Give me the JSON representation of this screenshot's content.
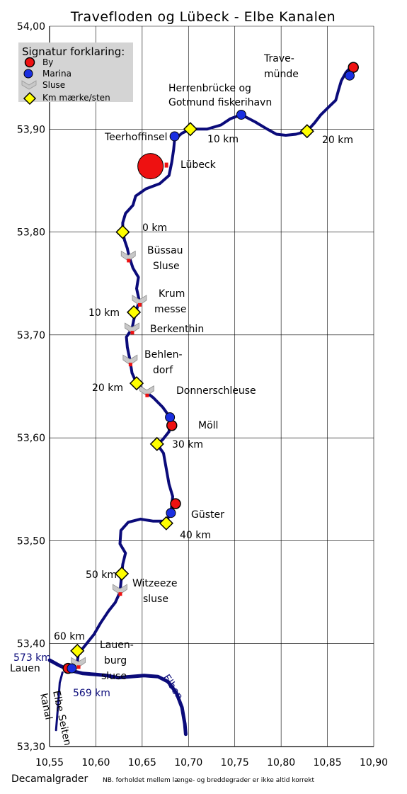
{
  "title": "Travefloden og Lübeck - Elbe Kanalen",
  "axes": {
    "x_label": "Decamalgrader",
    "note": "NB. forholdet mellem længe- og breddegrader er ikke altid korrekt",
    "x_ticks": [
      "10,55",
      "10,60",
      "10,65",
      "10,70",
      "10,75",
      "10,80",
      "10,85",
      "10,90"
    ],
    "y_ticks": [
      "54,00",
      "53,90",
      "53,80",
      "53,70",
      "53,60",
      "53,50",
      "53,40",
      "53,30"
    ],
    "x_range": [
      10.55,
      10.9
    ],
    "y_range": [
      53.3,
      54.0
    ]
  },
  "legend": {
    "title": "Signatur forklaring:",
    "items": [
      {
        "label": "By",
        "icon": "red-circle-icon"
      },
      {
        "label": "Marina",
        "icon": "blue-circle-icon"
      },
      {
        "label": "Sluse",
        "icon": "lock-chevron-icon"
      },
      {
        "label": "Km mærke/sten",
        "icon": "yellow-diamond-icon"
      }
    ]
  },
  "colors": {
    "river": "#0b0b7a",
    "city": "#ee1111",
    "marina": "#1a2fe0",
    "lock": "#c8c8c8",
    "km_marker": "#ffff00",
    "legend_bg": "#d4d4d4"
  },
  "labels": {
    "travemunde_1": "Trave-",
    "travemunde_2": "münde",
    "herrenbrucke_1": "Herrenbrücke og",
    "herrenbrucke_2": "Gotmund fiskerihavn",
    "teerhof": "Teerhoffinsel",
    "lubeck": "Lübeck",
    "km10_trave": "10 km",
    "km20_trave": "20 km",
    "km0": "0 km",
    "bussau_1": "Büssau",
    "bussau_2": "Sluse",
    "krum_1": "Krum",
    "krum_2": "messe",
    "km10": "10 km",
    "berkenthin": "Berkenthin",
    "behlen_1": "Behlen-",
    "behlen_2": "dorf",
    "km20": "20 km",
    "donner": "Donnerschleuse",
    "moll": "Möll",
    "km30": "30 km",
    "guster": "Güster",
    "km40": "40 km",
    "km50": "50 km",
    "witzeeze_1": "Witzeeze",
    "witzeeze_2": "sluse",
    "km60": "60 km",
    "lauenburg_1": "Lauen-",
    "lauenburg_2": "burg",
    "lauenburg_3": "sluse",
    "lauen_city": "Lauen",
    "km573": "573 km",
    "km569": "569 km",
    "elben": "Elben",
    "elbe_seiten_1": "Elbe Seiten",
    "elbe_seiten_2": "kanal"
  },
  "features": {
    "cities": [
      {
        "name": "Travemünde",
        "lon": 10.878,
        "lat": 53.96
      },
      {
        "name": "Lübeck",
        "lon": 10.659,
        "lat": 53.864,
        "size": "large"
      },
      {
        "name": "Möll",
        "lon": 10.682,
        "lat": 53.612
      },
      {
        "name": "Güster",
        "lon": 10.686,
        "lat": 53.536
      },
      {
        "name": "Lauenburg",
        "lon": 10.57,
        "lat": 53.376
      }
    ],
    "marinas": [
      {
        "name": "Travemünde",
        "lon": 10.874,
        "lat": 53.952
      },
      {
        "name": "Herrenbrücke",
        "lon": 10.757,
        "lat": 53.914
      },
      {
        "name": "Teerhoffinsel",
        "lon": 10.685,
        "lat": 53.893
      },
      {
        "name": "Möll",
        "lon": 10.68,
        "lat": 53.62
      },
      {
        "name": "Güster",
        "lon": 10.681,
        "lat": 53.527
      },
      {
        "name": "Lauenburg",
        "lon": 10.574,
        "lat": 53.376
      }
    ],
    "locks": [
      {
        "name": "Büssau",
        "lon": 10.635,
        "lat": 53.776
      },
      {
        "name": "Krum messe",
        "lon": 10.647,
        "lat": 53.733
      },
      {
        "name": "Berkenthin",
        "lon": 10.639,
        "lat": 53.706
      },
      {
        "name": "Behlendorf",
        "lon": 10.637,
        "lat": 53.675
      },
      {
        "name": "Donnerschleuse",
        "lon": 10.655,
        "lat": 53.645
      },
      {
        "name": "Witzeeze",
        "lon": 10.626,
        "lat": 53.452
      },
      {
        "name": "Lauenburg",
        "lon": 10.581,
        "lat": 53.381
      }
    ],
    "km_markers": [
      {
        "lon": 10.702,
        "lat": 53.9
      },
      {
        "lon": 10.828,
        "lat": 53.898
      },
      {
        "lon": 10.629,
        "lat": 53.8
      },
      {
        "lon": 10.641,
        "lat": 53.722
      },
      {
        "lon": 10.644,
        "lat": 53.653
      },
      {
        "lon": 10.666,
        "lat": 53.594
      },
      {
        "lon": 10.676,
        "lat": 53.517
      },
      {
        "lon": 10.628,
        "lat": 53.468
      },
      {
        "lon": 10.58,
        "lat": 53.393
      }
    ],
    "canal_path": [
      [
        10.878,
        53.963
      ],
      [
        10.87,
        53.955
      ],
      [
        10.865,
        53.947
      ],
      [
        10.862,
        53.938
      ],
      [
        10.859,
        53.928
      ],
      [
        10.852,
        53.922
      ],
      [
        10.843,
        53.914
      ],
      [
        10.836,
        53.906
      ],
      [
        10.828,
        53.898
      ],
      [
        10.816,
        53.895
      ],
      [
        10.805,
        53.894
      ],
      [
        10.795,
        53.895
      ],
      [
        10.785,
        53.9
      ],
      [
        10.772,
        53.907
      ],
      [
        10.757,
        53.914
      ],
      [
        10.745,
        53.91
      ],
      [
        10.735,
        53.904
      ],
      [
        10.72,
        53.9
      ],
      [
        10.702,
        53.9
      ],
      [
        10.693,
        53.896
      ],
      [
        10.685,
        53.89
      ],
      [
        10.684,
        53.88
      ],
      [
        10.682,
        53.868
      ],
      [
        10.679,
        53.855
      ],
      [
        10.669,
        53.847
      ],
      [
        10.654,
        53.842
      ],
      [
        10.643,
        53.835
      ],
      [
        10.64,
        53.826
      ],
      [
        10.632,
        53.818
      ],
      [
        10.629,
        53.809
      ],
      [
        10.629,
        53.8
      ],
      [
        10.631,
        53.792
      ],
      [
        10.634,
        53.784
      ],
      [
        10.636,
        53.776
      ],
      [
        10.64,
        53.765
      ],
      [
        10.646,
        53.756
      ],
      [
        10.644,
        53.745
      ],
      [
        10.647,
        53.733
      ],
      [
        10.643,
        53.722
      ],
      [
        10.641,
        53.715
      ],
      [
        10.639,
        53.706
      ],
      [
        10.633,
        53.698
      ],
      [
        10.634,
        53.688
      ],
      [
        10.637,
        53.675
      ],
      [
        10.639,
        53.663
      ],
      [
        10.644,
        53.653
      ],
      [
        10.652,
        53.646
      ],
      [
        10.662,
        53.639
      ],
      [
        10.672,
        53.63
      ],
      [
        10.68,
        53.62
      ],
      [
        10.679,
        53.606
      ],
      [
        10.672,
        53.598
      ],
      [
        10.666,
        53.594
      ],
      [
        10.673,
        53.585
      ],
      [
        10.676,
        53.57
      ],
      [
        10.679,
        53.555
      ],
      [
        10.683,
        53.543
      ],
      [
        10.681,
        53.527
      ],
      [
        10.676,
        53.519
      ],
      [
        10.662,
        53.519
      ],
      [
        10.648,
        53.521
      ],
      [
        10.635,
        53.518
      ],
      [
        10.627,
        53.51
      ],
      [
        10.626,
        53.497
      ],
      [
        10.632,
        53.488
      ],
      [
        10.629,
        53.477
      ],
      [
        10.628,
        53.468
      ],
      [
        10.627,
        53.459
      ],
      [
        10.626,
        53.45
      ],
      [
        10.621,
        53.44
      ],
      [
        10.614,
        53.432
      ],
      [
        10.605,
        53.42
      ],
      [
        10.598,
        53.409
      ],
      [
        10.59,
        53.4
      ],
      [
        10.581,
        53.39
      ],
      [
        10.58,
        53.382
      ]
    ],
    "elbe_path": [
      [
        10.55,
        53.384
      ],
      [
        10.56,
        53.379
      ],
      [
        10.572,
        53.374
      ],
      [
        10.586,
        53.371
      ],
      [
        10.6,
        53.37
      ],
      [
        10.612,
        53.369
      ],
      [
        10.624,
        53.367
      ],
      [
        10.638,
        53.368
      ],
      [
        10.652,
        53.369
      ],
      [
        10.667,
        53.368
      ],
      [
        10.678,
        53.363
      ],
      [
        10.687,
        53.352
      ],
      [
        10.693,
        53.338
      ],
      [
        10.696,
        53.322
      ],
      [
        10.697,
        53.312
      ]
    ],
    "elbe_seiten_path": [
      [
        10.564,
        53.372
      ],
      [
        10.561,
        53.362
      ],
      [
        10.56,
        53.35
      ],
      [
        10.559,
        53.338
      ],
      [
        10.558,
        53.327
      ],
      [
        10.557,
        53.316
      ]
    ]
  }
}
